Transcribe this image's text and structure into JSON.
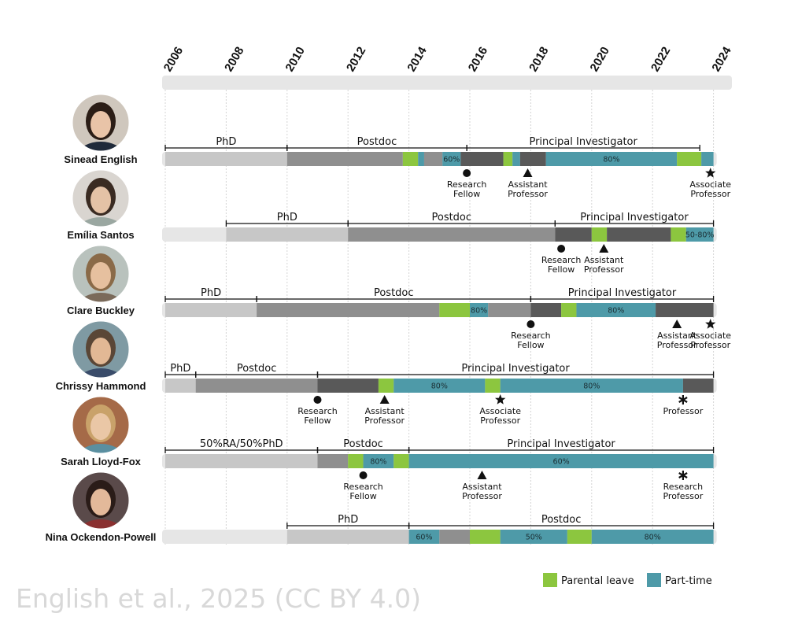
{
  "years": [
    "2006",
    "2008",
    "2010",
    "2012",
    "2014",
    "2016",
    "2018",
    "2020",
    "2022",
    "2024"
  ],
  "colors": {
    "phd": "#c7c7c7",
    "postdoc": "#8f8f8f",
    "pi": "#595959",
    "pre": "#e6e6e6",
    "parental_leave": "#8cc63f",
    "part_time": "#4e9aa8",
    "header_bar": "#e6e6e6"
  },
  "legend": {
    "parental_leave": "Parental leave",
    "part_time": "Part-time"
  },
  "credit": "English et al., 2025 (CC BY 4.0)",
  "people": [
    {
      "name": "Sinead English",
      "photo": {
        "skin": "#e9c4a8",
        "hair": "#2b1d16",
        "bg": "#cfc7bd",
        "shirt": "#1f2a3a"
      },
      "stages": [
        {
          "label": "PhD",
          "from": 2006.0,
          "to": 2010.0
        },
        {
          "label": "Postdoc",
          "from": 2010.0,
          "to": 2015.9
        },
        {
          "label": "Principal Investigator",
          "from": 2015.9,
          "to": 2023.55
        }
      ],
      "bar": {
        "from": 2006.0,
        "to": 2024.0
      },
      "segments": [
        {
          "kind": "phd",
          "from": 2006.0,
          "to": 2010.0
        },
        {
          "kind": "postdoc",
          "from": 2010.0,
          "to": 2013.8
        },
        {
          "kind": "parental_leave",
          "from": 2013.8,
          "to": 2014.3
        },
        {
          "kind": "part_time",
          "from": 2014.3,
          "to": 2014.5
        },
        {
          "kind": "postdoc",
          "from": 2014.5,
          "to": 2015.1
        },
        {
          "kind": "part_time",
          "from": 2015.1,
          "to": 2015.7,
          "label": "60%"
        },
        {
          "kind": "pi",
          "from": 2015.7,
          "to": 2017.1
        },
        {
          "kind": "parental_leave",
          "from": 2017.1,
          "to": 2017.4
        },
        {
          "kind": "part_time",
          "from": 2017.4,
          "to": 2017.65
        },
        {
          "kind": "pi",
          "from": 2017.65,
          "to": 2018.5
        },
        {
          "kind": "part_time",
          "from": 2018.5,
          "to": 2022.8,
          "label": "80%"
        },
        {
          "kind": "parental_leave",
          "from": 2022.8,
          "to": 2023.6
        },
        {
          "kind": "part_time",
          "from": 2023.6,
          "to": 2024.0
        }
      ],
      "events": [
        {
          "symbol": "circle",
          "at": 2015.9,
          "label": [
            "Research",
            "Fellow"
          ]
        },
        {
          "symbol": "triangle",
          "at": 2017.9,
          "label": [
            "Assistant",
            "Professor"
          ]
        },
        {
          "symbol": "star",
          "at": 2023.9,
          "label": [
            "Associate",
            "Professor"
          ]
        }
      ]
    },
    {
      "name": "Emília Santos",
      "photo": {
        "skin": "#e4c2a6",
        "hair": "#3a2b22",
        "bg": "#d9d5d0",
        "shirt": "#9aa7a1"
      },
      "stages": [
        {
          "label": "PhD",
          "from": 2008.0,
          "to": 2012.0
        },
        {
          "label": "Postdoc",
          "from": 2012.0,
          "to": 2018.8
        },
        {
          "label": "Principal Investigator",
          "from": 2018.8,
          "to": 2024.0
        }
      ],
      "bar": {
        "from": 2006.0,
        "to": 2024.0
      },
      "segments": [
        {
          "kind": "pre",
          "from": 2006.0,
          "to": 2008.0
        },
        {
          "kind": "phd",
          "from": 2008.0,
          "to": 2012.0
        },
        {
          "kind": "postdoc",
          "from": 2012.0,
          "to": 2018.8
        },
        {
          "kind": "pi",
          "from": 2018.8,
          "to": 2020.0
        },
        {
          "kind": "parental_leave",
          "from": 2020.0,
          "to": 2020.5
        },
        {
          "kind": "pi",
          "from": 2020.5,
          "to": 2022.6
        },
        {
          "kind": "parental_leave",
          "from": 2022.6,
          "to": 2023.1
        },
        {
          "kind": "part_time",
          "from": 2023.1,
          "to": 2024.0,
          "label": "50-80%"
        }
      ],
      "events": [
        {
          "symbol": "circle",
          "at": 2019.0,
          "label": [
            "Research",
            "Fellow"
          ]
        },
        {
          "symbol": "triangle",
          "at": 2020.4,
          "label": [
            "Assistant",
            "Professor"
          ]
        }
      ]
    },
    {
      "name": "Clare Buckley",
      "photo": {
        "skin": "#e6c09f",
        "hair": "#8a6a48",
        "bg": "#b9c2bd",
        "shirt": "#7a6a5a"
      },
      "stages": [
        {
          "label": "PhD",
          "from": 2006.0,
          "to": 2009.0
        },
        {
          "label": "Postdoc",
          "from": 2009.0,
          "to": 2018.0
        },
        {
          "label": "Principal Investigator",
          "from": 2018.0,
          "to": 2024.0
        }
      ],
      "bar": {
        "from": 2006.0,
        "to": 2024.0
      },
      "segments": [
        {
          "kind": "phd",
          "from": 2006.0,
          "to": 2009.0
        },
        {
          "kind": "postdoc",
          "from": 2009.0,
          "to": 2015.0
        },
        {
          "kind": "parental_leave",
          "from": 2015.0,
          "to": 2016.0
        },
        {
          "kind": "part_time",
          "from": 2016.0,
          "to": 2016.6,
          "label": "80%"
        },
        {
          "kind": "postdoc",
          "from": 2016.6,
          "to": 2018.0
        },
        {
          "kind": "pi",
          "from": 2018.0,
          "to": 2019.0
        },
        {
          "kind": "parental_leave",
          "from": 2019.0,
          "to": 2019.5
        },
        {
          "kind": "part_time",
          "from": 2019.5,
          "to": 2022.1,
          "label": "80%"
        },
        {
          "kind": "pi",
          "from": 2022.1,
          "to": 2024.0
        }
      ],
      "events": [
        {
          "symbol": "circle",
          "at": 2018.0,
          "label": [
            "Research",
            "Fellow"
          ]
        },
        {
          "symbol": "triangle",
          "at": 2022.8,
          "label": [
            "Assistant",
            "Professor"
          ]
        },
        {
          "symbol": "star",
          "at": 2023.9,
          "label": [
            "Associate",
            "Professor"
          ]
        }
      ]
    },
    {
      "name": "Chrissy Hammond",
      "photo": {
        "skin": "#e2b895",
        "hair": "#5a4636",
        "bg": "#7f9aa3",
        "shirt": "#3a4c6a"
      },
      "stages": [
        {
          "label": "PhD",
          "from": 2006.0,
          "to": 2007.0
        },
        {
          "label": "Postdoc",
          "from": 2007.0,
          "to": 2011.0
        },
        {
          "label": "Principal Investigator",
          "from": 2011.0,
          "to": 2024.0
        }
      ],
      "bar": {
        "from": 2006.0,
        "to": 2024.0
      },
      "segments": [
        {
          "kind": "phd",
          "from": 2006.0,
          "to": 2007.0
        },
        {
          "kind": "postdoc",
          "from": 2007.0,
          "to": 2011.0
        },
        {
          "kind": "pi",
          "from": 2011.0,
          "to": 2013.0
        },
        {
          "kind": "parental_leave",
          "from": 2013.0,
          "to": 2013.5
        },
        {
          "kind": "part_time",
          "from": 2013.5,
          "to": 2016.5,
          "label": "80%"
        },
        {
          "kind": "parental_leave",
          "from": 2016.5,
          "to": 2017.0
        },
        {
          "kind": "part_time",
          "from": 2017.0,
          "to": 2023.0,
          "label": "80%"
        },
        {
          "kind": "pi",
          "from": 2023.0,
          "to": 2024.0
        }
      ],
      "events": [
        {
          "symbol": "circle",
          "at": 2011.0,
          "label": [
            "Research",
            "Fellow"
          ]
        },
        {
          "symbol": "triangle",
          "at": 2013.2,
          "label": [
            "Assistant",
            "Professor"
          ]
        },
        {
          "symbol": "star",
          "at": 2017.0,
          "label": [
            "Associate",
            "Professor"
          ]
        },
        {
          "symbol": "asterisk",
          "at": 2023.0,
          "label": [
            "Professor"
          ]
        }
      ]
    },
    {
      "name": "Sarah Lloyd-Fox",
      "photo": {
        "skin": "#eac7a6",
        "hair": "#c9a26a",
        "bg": "#a56a48",
        "shirt": "#5a8fa0"
      },
      "stages": [
        {
          "label": "50%RA/50%PhD",
          "from": 2006.0,
          "to": 2011.0
        },
        {
          "label": "Postdoc",
          "from": 2011.0,
          "to": 2014.0
        },
        {
          "label": "Principal Investigator",
          "from": 2014.0,
          "to": 2024.0
        }
      ],
      "bar": {
        "from": 2006.0,
        "to": 2024.0
      },
      "segments": [
        {
          "kind": "phd",
          "from": 2006.0,
          "to": 2011.0
        },
        {
          "kind": "postdoc",
          "from": 2011.0,
          "to": 2012.0
        },
        {
          "kind": "parental_leave",
          "from": 2012.0,
          "to": 2012.5
        },
        {
          "kind": "part_time",
          "from": 2012.5,
          "to": 2013.5,
          "label": "80%"
        },
        {
          "kind": "parental_leave",
          "from": 2013.5,
          "to": 2014.0
        },
        {
          "kind": "part_time",
          "from": 2014.0,
          "to": 2024.0,
          "label": "60%"
        }
      ],
      "events": [
        {
          "symbol": "circle",
          "at": 2012.5,
          "label": [
            "Research",
            "Fellow"
          ]
        },
        {
          "symbol": "triangle",
          "at": 2016.4,
          "label": [
            "Assistant",
            "Professor"
          ]
        },
        {
          "symbol": "asterisk",
          "at": 2023.0,
          "label": [
            "Research",
            "Professor"
          ]
        }
      ]
    },
    {
      "name": "Nina Ockendon-Powell",
      "photo": {
        "skin": "#e3b99a",
        "hair": "#2a1c18",
        "bg": "#5a4a4a",
        "shirt": "#8a3030"
      },
      "stages": [
        {
          "label": "PhD",
          "from": 2010.0,
          "to": 2014.0
        },
        {
          "label": "Postdoc",
          "from": 2014.0,
          "to": 2024.0
        }
      ],
      "bar": {
        "from": 2006.0,
        "to": 2024.0
      },
      "segments": [
        {
          "kind": "pre",
          "from": 2006.0,
          "to": 2010.0
        },
        {
          "kind": "phd",
          "from": 2010.0,
          "to": 2014.0
        },
        {
          "kind": "part_time",
          "from": 2014.0,
          "to": 2015.0,
          "label": "60%"
        },
        {
          "kind": "postdoc",
          "from": 2015.0,
          "to": 2016.0
        },
        {
          "kind": "parental_leave",
          "from": 2016.0,
          "to": 2017.0
        },
        {
          "kind": "part_time",
          "from": 2017.0,
          "to": 2019.2,
          "label": "50%"
        },
        {
          "kind": "parental_leave",
          "from": 2019.2,
          "to": 2020.0
        },
        {
          "kind": "part_time",
          "from": 2020.0,
          "to": 2024.0,
          "label": "80%"
        }
      ],
      "events": []
    }
  ]
}
